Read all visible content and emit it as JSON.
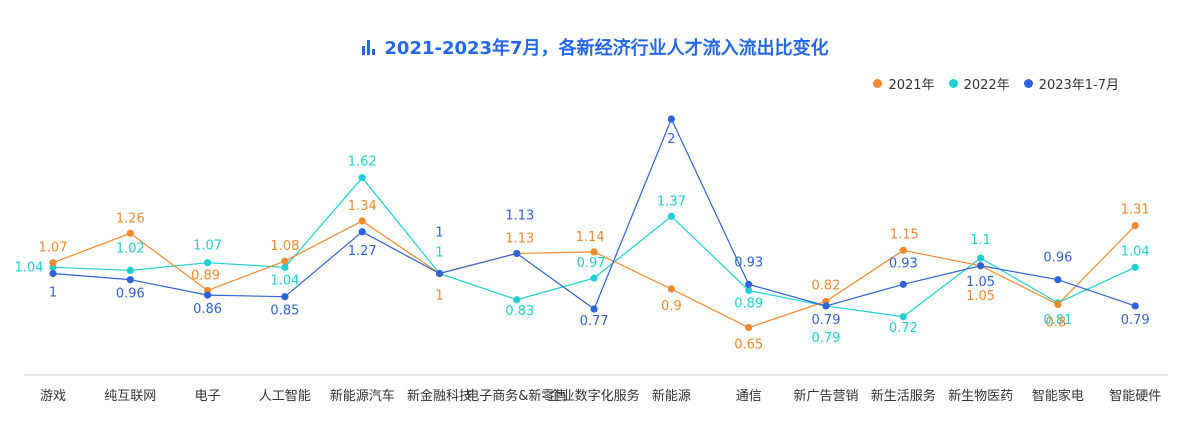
{
  "chart_data": {
    "type": "line",
    "title": "2021-2023年7月，各新经济行业人才流入流出比变化",
    "title_icon": "bar-chart-icon",
    "legend_position": "top-right",
    "categories": [
      "游戏",
      "纯互联网",
      "电子",
      "人工智能",
      "新能源汽车",
      "新金融科技",
      "电子商务&新零售",
      "企业数字化服务",
      "新能源",
      "通信",
      "新广告营销",
      "新生活服务",
      "新生物医药",
      "智能家电",
      "智能硬件"
    ],
    "series": [
      {
        "name": "2021年",
        "color": "#f08a2e",
        "values": [
          1.07,
          1.26,
          0.89,
          1.08,
          1.34,
          1,
          1.13,
          1.14,
          0.9,
          0.65,
          0.82,
          1.15,
          1.05,
          0.8,
          1.31
        ]
      },
      {
        "name": "2022年",
        "color": "#1fcfd1",
        "values": [
          1.04,
          1.02,
          1.07,
          1.04,
          1.62,
          1,
          0.83,
          0.97,
          1.37,
          0.89,
          0.79,
          0.72,
          1.1,
          0.81,
          1.04
        ]
      },
      {
        "name": "2023年1-7月",
        "color": "#2f63d8",
        "values": [
          1,
          0.96,
          0.86,
          0.85,
          1.27,
          1,
          1.13,
          0.77,
          2,
          0.93,
          0.79,
          0.93,
          1.05,
          0.96,
          0.79
        ]
      }
    ],
    "grid": false,
    "y_axis_visible": false
  }
}
